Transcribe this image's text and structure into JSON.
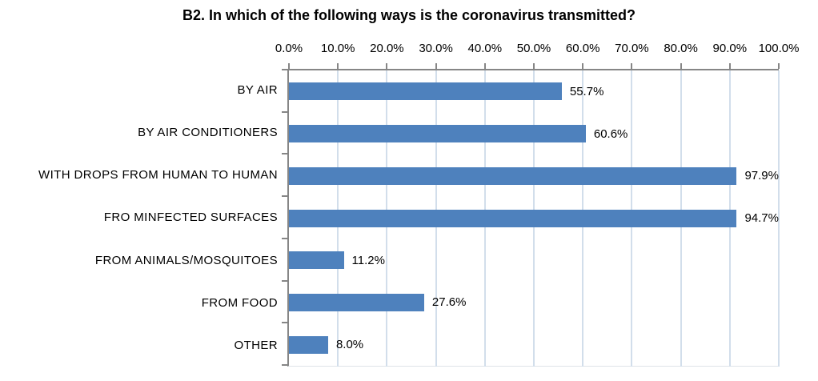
{
  "chart_data": {
    "type": "bar",
    "orientation": "horizontal",
    "title": "B2. In which of the following ways is the coronavirus transmitted?",
    "categories": [
      "BY AIR",
      "BY AIR CONDITIONERS",
      "WITH DROPS FROM HUMAN TO HUMAN",
      "FRO MINFECTED SURFACES",
      "FROM ANIMALS/MOSQUITOES",
      "FROM FOOD",
      "OTHER"
    ],
    "values": [
      55.7,
      60.6,
      97.9,
      94.7,
      11.2,
      27.6,
      8.0
    ],
    "value_labels": [
      "55.7%",
      "60.6%",
      "97.9%",
      "94.7%",
      "11.2%",
      "27.6%",
      "8.0%"
    ],
    "x_tick_labels": [
      "0.0%",
      "10.0%",
      "20.0%",
      "30.0%",
      "40.0%",
      "50.0%",
      "60.0%",
      "70.0%",
      "80.0%",
      "90.0%",
      "100.0%"
    ],
    "xlim": [
      0,
      100
    ],
    "xlabel": "",
    "ylabel": "",
    "legend": "none",
    "grid": "vertical",
    "colors": {
      "bar": "#4e81bd",
      "gridline": "#d2deeb",
      "axis": "#868686",
      "text": "#000000"
    }
  }
}
